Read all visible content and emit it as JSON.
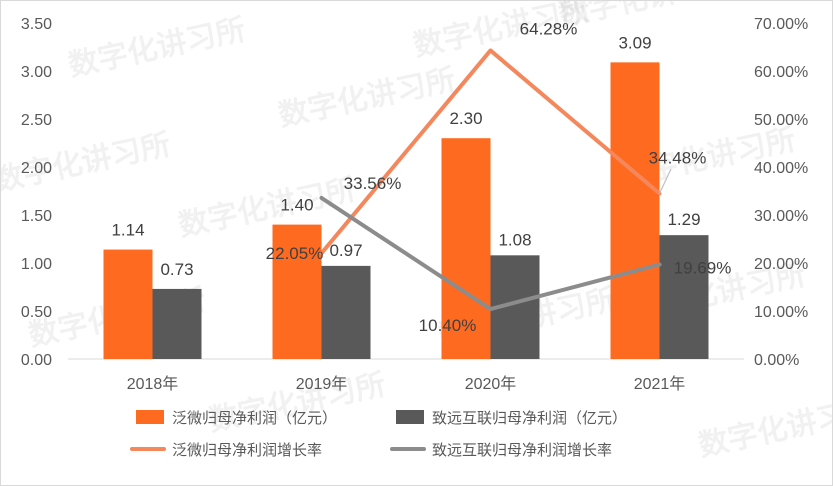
{
  "watermark": "数字化讲习所",
  "chart_data": {
    "type": "bar",
    "categories": [
      "2018年",
      "2019年",
      "2020年",
      "2021年"
    ],
    "series": [
      {
        "name": "泛微归母净利润（亿元）",
        "type": "bar",
        "axis": "left",
        "color": "#ff6a21",
        "values": [
          1.14,
          1.4,
          2.3,
          3.09
        ],
        "labels": [
          "1.14",
          "1.40",
          "2.30",
          "3.09"
        ]
      },
      {
        "name": "致远互联归母净利润（亿元）",
        "type": "bar",
        "axis": "left",
        "color": "#595959",
        "values": [
          0.73,
          0.97,
          1.08,
          1.29
        ],
        "labels": [
          "0.73",
          "0.97",
          "1.08",
          "1.29"
        ]
      },
      {
        "name": "泛微归母净利润增长率",
        "type": "line",
        "axis": "right",
        "color": "#f4875c",
        "values": [
          null,
          22.05,
          64.28,
          34.48
        ],
        "labels": [
          null,
          "22.05%",
          "64.28%",
          "34.48%"
        ]
      },
      {
        "name": "致远互联归母净利润增长率",
        "type": "line",
        "axis": "right",
        "color": "#8c8c8c",
        "values": [
          null,
          33.56,
          10.4,
          19.69
        ],
        "labels": [
          null,
          "33.56%",
          "10.40%",
          "19.69%"
        ]
      }
    ],
    "y_left": {
      "min": 0,
      "max": 3.5,
      "ticks": [
        "0.00",
        "0.50",
        "1.00",
        "1.50",
        "2.00",
        "2.50",
        "3.00",
        "3.50"
      ]
    },
    "y_right": {
      "min": 0,
      "max": 70,
      "ticks": [
        "0.00%",
        "10.00%",
        "20.00%",
        "30.00%",
        "40.00%",
        "50.00%",
        "60.00%",
        "70.00%"
      ]
    },
    "grid": false,
    "legend_position": "bottom"
  }
}
